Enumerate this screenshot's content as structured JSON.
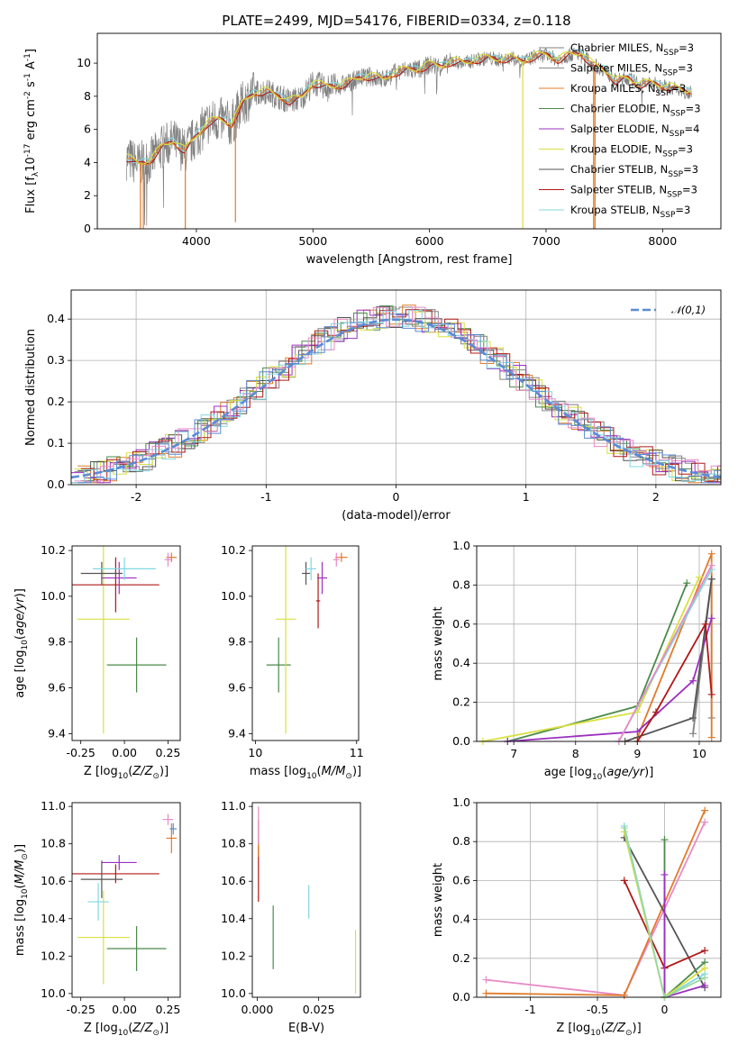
{
  "title": "PLATE=2499, MJD=54176, FIBERID=0334, z=0.118",
  "colors": {
    "Chabrier MILES": "#808080",
    "Salpeter MILES": "#888888",
    "Kroupa MILES": "#e07b2a",
    "Chabrier ELODIE": "#4a8a4a",
    "Salpeter ELODIE": "#9b30c0",
    "Kroupa ELODIE": "#d8e040",
    "Chabrier STELIB": "#555555",
    "Salpeter STELIB": "#b01818",
    "Kroupa STELIB": "#80d8e0",
    "normal": "#5a8bd6"
  },
  "chart_data": [
    {
      "type": "line",
      "xlabel": "wavelength [Angstrom, rest frame]",
      "ylabel": "Flux [f$_\\lambda$10$^{-17}$ erg cm$^{-2}$ s$^{-1}$ A$^{-1}$]",
      "xlim": [
        3150,
        8500
      ],
      "ylim": [
        0,
        11.8
      ],
      "xticks": [
        4000,
        5000,
        6000,
        7000,
        8000
      ],
      "yticks": [
        0,
        2,
        4,
        6,
        8,
        10
      ],
      "grid": false,
      "legend": "top-right",
      "legend_labels": [
        "Chabrier MILES, N$_{SSP}$=3",
        "Salpeter MILES, N$_{SSP}$=3",
        "Kroupa MILES, N$_{SSP}$=3",
        "Chabrier ELODIE, N$_{SSP}$=3",
        "Salpeter ELODIE, N$_{SSP}$=4",
        "Kroupa ELODIE, N$_{SSP}$=3",
        "Chabrier STELIB, N$_{SSP}$=3",
        "Salpeter STELIB, N$_{SSP}$=3",
        "Kroupa STELIB, N$_{SSP}$=3"
      ],
      "model_continuum": {
        "x": [
          3400,
          3500,
          3600,
          3700,
          3800,
          3900,
          4000,
          4100,
          4200,
          4300,
          4400,
          4500,
          4600,
          4700,
          4800,
          4900,
          5000,
          5100,
          5200,
          5300,
          5400,
          5500,
          5600,
          5700,
          5800,
          5900,
          6000,
          6100,
          6200,
          6300,
          6400,
          6500,
          6600,
          6700,
          6800,
          6900,
          7000,
          7100,
          7200,
          7300,
          7400,
          7500,
          7600,
          7700,
          7800,
          7900,
          8000,
          8100,
          8200,
          8250
        ],
        "y": [
          4.3,
          3.9,
          4.1,
          4.9,
          5.3,
          4.7,
          5.6,
          6.4,
          6.6,
          6.3,
          7.6,
          8.2,
          8.3,
          8.0,
          7.7,
          7.9,
          8.8,
          8.6,
          8.6,
          8.8,
          9.1,
          9.2,
          9.0,
          9.4,
          9.6,
          9.6,
          9.9,
          9.8,
          10.1,
          10.0,
          10.2,
          10.3,
          10.2,
          10.3,
          10.1,
          10.4,
          10.5,
          10.2,
          10.5,
          10.6,
          9.9,
          9.6,
          8.9,
          9.1,
          8.7,
          8.8,
          8.6,
          8.5,
          8.3,
          8.3
        ]
      }
    },
    {
      "type": "step",
      "xlabel": "(data-model)/error",
      "ylabel": "Normed distribution",
      "xlim": [
        -2.5,
        2.5
      ],
      "ylim": [
        0,
        0.47
      ],
      "xticks": [
        -2,
        -1,
        0,
        1,
        2
      ],
      "yticks": [
        0.0,
        0.1,
        0.2,
        0.3,
        0.4
      ],
      "grid": true,
      "legend": "top-right",
      "legend_label": "$\\mathcal{N}(0,1)$"
    },
    {
      "type": "scatter",
      "xlabel": "Z [log$_{10}$($Z/Z_\\odot$)]",
      "ylabel": "age  [log$_{10}$($age/yr$)]",
      "xlim": [
        -0.3,
        0.32
      ],
      "ylim": [
        9.37,
        10.22
      ],
      "xticks": [
        -0.25,
        0.0,
        0.25
      ],
      "yticks": [
        9.4,
        9.6,
        9.8,
        10.0,
        10.2
      ]
    },
    {
      "type": "scatter",
      "xlabel": "mass [log$_{10}$($M/M_\\odot$)]",
      "xlim": [
        9.97,
        11.02
      ],
      "ylim": [
        9.37,
        10.22
      ],
      "xticks": [
        10,
        11
      ],
      "yticks": [
        9.4,
        9.6,
        9.8,
        10.0,
        10.2
      ]
    },
    {
      "type": "line",
      "xlabel": "age  [log$_{10}$($age/yr$)]",
      "ylabel": "mass weight",
      "xlim": [
        6.4,
        10.35
      ],
      "ylim": [
        0,
        1
      ],
      "xticks": [
        7,
        8,
        9,
        10
      ],
      "yticks": [
        0.0,
        0.2,
        0.4,
        0.6,
        0.8,
        1.0
      ],
      "grid": true,
      "series": [
        {
          "color": "#4a8a4a",
          "x": [
            6.9,
            9.0,
            9.8
          ],
          "y": [
            0.0,
            0.18,
            0.81
          ]
        },
        {
          "color": "#808080",
          "x": [
            9.9,
            10.2,
            10.2
          ],
          "y": [
            0.04,
            0.83,
            0.12
          ]
        },
        {
          "color": "#e07b2a",
          "x": [
            9.0,
            10.2,
            10.2
          ],
          "y": [
            0.02,
            0.96,
            0.02
          ]
        },
        {
          "color": "#9b30c0",
          "x": [
            6.9,
            9.0,
            9.9,
            10.2
          ],
          "y": [
            0.0,
            0.05,
            0.31,
            0.63
          ]
        },
        {
          "color": "#d8e040",
          "x": [
            6.5,
            9.0,
            10.0
          ],
          "y": [
            0.0,
            0.15,
            0.84
          ]
        },
        {
          "color": "#555555",
          "x": [
            8.8,
            9.9,
            10.2
          ],
          "y": [
            0.0,
            0.12,
            0.83
          ]
        },
        {
          "color": "#b01818",
          "x": [
            9.0,
            9.3,
            10.1,
            10.2
          ],
          "y": [
            0.0,
            0.15,
            0.6,
            0.24
          ]
        },
        {
          "color": "#80d8e0",
          "x": [
            8.7,
            10.2
          ],
          "y": [
            0.0,
            0.88
          ]
        },
        {
          "color": "#e88ac8",
          "x": [
            8.7,
            10.2
          ],
          "y": [
            0.0,
            0.9
          ]
        }
      ]
    },
    {
      "type": "scatter",
      "xlabel": "Z [log$_{10}$($Z/Z_\\odot$)]",
      "ylabel": "mass [log$_{10}$($M/M_\\odot$)]",
      "xlim": [
        -0.3,
        0.32
      ],
      "ylim": [
        9.98,
        11.02
      ],
      "xticks": [
        -0.25,
        0.0,
        0.25
      ],
      "yticks": [
        10.0,
        10.2,
        10.4,
        10.6,
        10.8,
        11.0
      ]
    },
    {
      "type": "scatter",
      "xlabel": "E(B-V)",
      "xlim": [
        -0.002,
        0.042
      ],
      "ylim": [
        9.98,
        11.02
      ],
      "xticks": [
        0.0,
        0.025
      ],
      "yticks": [
        10.0,
        10.2,
        10.4,
        10.6,
        10.8,
        11.0
      ]
    },
    {
      "type": "line",
      "xlabel": "Z [log$_{10}$($Z/Z_\\odot$)]",
      "ylabel": "mass weight",
      "xlim": [
        -1.4,
        0.42
      ],
      "ylim": [
        0,
        1
      ],
      "xticks": [
        -1.0,
        -0.5,
        0.0
      ],
      "yticks": [
        0.0,
        0.2,
        0.4,
        0.6,
        0.8,
        1.0
      ],
      "grid": true,
      "series": [
        {
          "color": "#e88ac8",
          "x": [
            -1.33,
            -0.3,
            0.3
          ],
          "y": [
            0.09,
            0.01,
            0.9
          ]
        },
        {
          "color": "#e07b2a",
          "x": [
            -1.33,
            -0.3,
            0.3
          ],
          "y": [
            0.02,
            0.01,
            0.96
          ]
        },
        {
          "color": "#555555",
          "x": [
            -0.3,
            0.3
          ],
          "y": [
            0.82,
            0.05
          ]
        },
        {
          "color": "#b01818",
          "x": [
            -0.3,
            0.0,
            0.3
          ],
          "y": [
            0.6,
            0.15,
            0.24
          ]
        },
        {
          "color": "#4a8a4a",
          "x": [
            0.0,
            0.0,
            0.3
          ],
          "y": [
            0.81,
            0.0,
            0.18
          ]
        },
        {
          "color": "#9b30c0",
          "x": [
            0.0,
            0.0,
            0.3
          ],
          "y": [
            0.63,
            0.0,
            0.06
          ]
        },
        {
          "color": "#80d8e0",
          "x": [
            -0.3,
            0.0,
            0.3
          ],
          "y": [
            0.88,
            0.0,
            0.12
          ]
        },
        {
          "color": "#d8e040",
          "x": [
            -0.3,
            0.0,
            0.3
          ],
          "y": [
            0.85,
            0.0,
            0.15
          ]
        },
        {
          "color": "#9ad8a0",
          "x": [
            -0.3,
            0.0,
            0.3
          ],
          "y": [
            0.87,
            0.0,
            0.1
          ]
        }
      ]
    }
  ]
}
